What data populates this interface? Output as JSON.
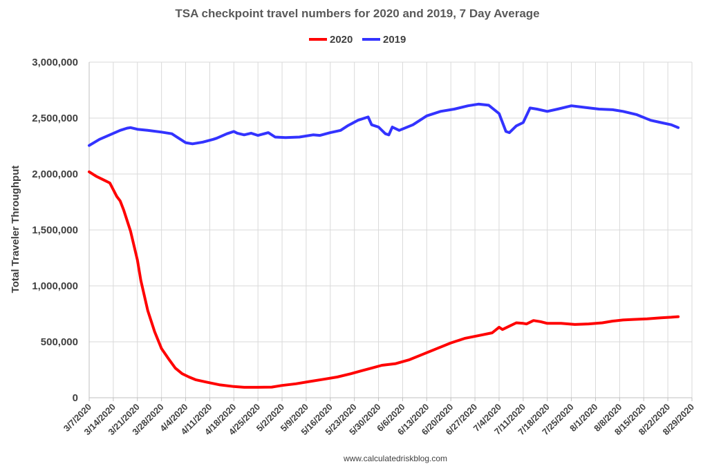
{
  "chart_data": {
    "type": "line",
    "title": "TSA checkpoint travel numbers for 2020 and 2019, 7 Day Average",
    "xlabel": "",
    "ylabel": "Total Traveler Throughput",
    "source": "www.calculatedriskblog.com",
    "ylim": [
      0,
      3000000
    ],
    "yticks": [
      0,
      500000,
      1000000,
      1500000,
      2000000,
      2500000,
      3000000
    ],
    "ytick_labels": [
      "0",
      "500,000",
      "1,000,000",
      "1,500,000",
      "2,000,000",
      "2,500,000",
      "3,000,000"
    ],
    "x_start": "3/7/2020",
    "x_end": "8/29/2020",
    "x_tick_labels": [
      "3/7/2020",
      "3/14/2020",
      "3/21/2020",
      "3/28/2020",
      "4/4/2020",
      "4/11/2020",
      "4/18/2020",
      "4/25/2020",
      "5/2/2020",
      "5/9/2020",
      "5/16/2020",
      "5/23/2020",
      "5/30/2020",
      "6/6/2020",
      "6/13/2020",
      "6/20/2020",
      "6/27/2020",
      "7/4/2020",
      "7/11/2020",
      "7/18/2020",
      "7/25/2020",
      "8/1/2020",
      "8/8/2020",
      "8/15/2020",
      "8/22/2020",
      "8/29/2020"
    ],
    "grid": true,
    "legend_position": "top",
    "series": [
      {
        "name": "2020",
        "color": "#ff0000",
        "points": [
          [
            "3/7/2020",
            2020000
          ],
          [
            "3/9/2020",
            1980000
          ],
          [
            "3/11/2020",
            1950000
          ],
          [
            "3/13/2020",
            1920000
          ],
          [
            "3/15/2020",
            1800000
          ],
          [
            "3/16/2020",
            1760000
          ],
          [
            "3/17/2020",
            1680000
          ],
          [
            "3/19/2020",
            1490000
          ],
          [
            "3/21/2020",
            1230000
          ],
          [
            "3/22/2020",
            1050000
          ],
          [
            "3/24/2020",
            780000
          ],
          [
            "3/26/2020",
            590000
          ],
          [
            "3/28/2020",
            440000
          ],
          [
            "3/30/2020",
            350000
          ],
          [
            "4/1/2020",
            265000
          ],
          [
            "4/3/2020",
            215000
          ],
          [
            "4/5/2020",
            185000
          ],
          [
            "4/7/2020",
            160000
          ],
          [
            "4/10/2020",
            140000
          ],
          [
            "4/14/2020",
            115000
          ],
          [
            "4/18/2020",
            100000
          ],
          [
            "4/21/2020",
            93000
          ],
          [
            "4/25/2020",
            93000
          ],
          [
            "4/29/2020",
            95000
          ],
          [
            "5/2/2020",
            110000
          ],
          [
            "5/6/2020",
            125000
          ],
          [
            "5/10/2020",
            145000
          ],
          [
            "5/14/2020",
            165000
          ],
          [
            "5/18/2020",
            185000
          ],
          [
            "5/22/2020",
            215000
          ],
          [
            "5/25/2020",
            240000
          ],
          [
            "5/28/2020",
            265000
          ],
          [
            "5/31/2020",
            290000
          ],
          [
            "6/4/2020",
            305000
          ],
          [
            "6/8/2020",
            340000
          ],
          [
            "6/12/2020",
            390000
          ],
          [
            "6/16/2020",
            440000
          ],
          [
            "6/20/2020",
            490000
          ],
          [
            "6/24/2020",
            530000
          ],
          [
            "6/28/2020",
            555000
          ],
          [
            "7/2/2020",
            580000
          ],
          [
            "7/4/2020",
            630000
          ],
          [
            "7/5/2020",
            610000
          ],
          [
            "7/7/2020",
            640000
          ],
          [
            "7/9/2020",
            670000
          ],
          [
            "7/11/2020",
            665000
          ],
          [
            "7/12/2020",
            660000
          ],
          [
            "7/14/2020",
            690000
          ],
          [
            "7/16/2020",
            680000
          ],
          [
            "7/18/2020",
            665000
          ],
          [
            "7/22/2020",
            665000
          ],
          [
            "7/26/2020",
            655000
          ],
          [
            "7/30/2020",
            660000
          ],
          [
            "8/3/2020",
            670000
          ],
          [
            "8/6/2020",
            685000
          ],
          [
            "8/9/2020",
            695000
          ],
          [
            "8/12/2020",
            700000
          ],
          [
            "8/16/2020",
            705000
          ],
          [
            "8/20/2020",
            715000
          ],
          [
            "8/23/2020",
            720000
          ],
          [
            "8/25/2020",
            725000
          ]
        ]
      },
      {
        "name": "2019",
        "color": "#3333ff",
        "points": [
          [
            "3/7/2020",
            2255000
          ],
          [
            "3/10/2020",
            2310000
          ],
          [
            "3/13/2020",
            2350000
          ],
          [
            "3/16/2020",
            2390000
          ],
          [
            "3/18/2020",
            2410000
          ],
          [
            "3/19/2020",
            2415000
          ],
          [
            "3/21/2020",
            2400000
          ],
          [
            "3/24/2020",
            2390000
          ],
          [
            "3/28/2020",
            2375000
          ],
          [
            "3/31/2020",
            2360000
          ],
          [
            "4/2/2020",
            2320000
          ],
          [
            "4/4/2020",
            2280000
          ],
          [
            "4/6/2020",
            2270000
          ],
          [
            "4/9/2020",
            2285000
          ],
          [
            "4/12/2020",
            2310000
          ],
          [
            "4/13/2020",
            2320000
          ],
          [
            "4/16/2020",
            2360000
          ],
          [
            "4/18/2020",
            2380000
          ],
          [
            "4/19/2020",
            2365000
          ],
          [
            "4/21/2020",
            2350000
          ],
          [
            "4/23/2020",
            2365000
          ],
          [
            "4/25/2020",
            2345000
          ],
          [
            "4/28/2020",
            2370000
          ],
          [
            "4/30/2020",
            2330000
          ],
          [
            "5/3/2020",
            2325000
          ],
          [
            "5/7/2020",
            2330000
          ],
          [
            "5/11/2020",
            2350000
          ],
          [
            "5/13/2020",
            2345000
          ],
          [
            "5/16/2020",
            2370000
          ],
          [
            "5/19/2020",
            2390000
          ],
          [
            "5/21/2020",
            2430000
          ],
          [
            "5/24/2020",
            2480000
          ],
          [
            "5/27/2020",
            2510000
          ],
          [
            "5/28/2020",
            2440000
          ],
          [
            "5/30/2020",
            2420000
          ],
          [
            "6/1/2020",
            2360000
          ],
          [
            "6/2/2020",
            2350000
          ],
          [
            "6/3/2020",
            2420000
          ],
          [
            "6/5/2020",
            2390000
          ],
          [
            "6/9/2020",
            2440000
          ],
          [
            "6/13/2020",
            2520000
          ],
          [
            "6/17/2020",
            2560000
          ],
          [
            "6/21/2020",
            2580000
          ],
          [
            "6/25/2020",
            2610000
          ],
          [
            "6/28/2020",
            2625000
          ],
          [
            "7/1/2020",
            2615000
          ],
          [
            "7/4/2020",
            2540000
          ],
          [
            "7/6/2020",
            2380000
          ],
          [
            "7/7/2020",
            2370000
          ],
          [
            "7/9/2020",
            2430000
          ],
          [
            "7/11/2020",
            2460000
          ],
          [
            "7/13/2020",
            2590000
          ],
          [
            "7/15/2020",
            2580000
          ],
          [
            "7/18/2020",
            2560000
          ],
          [
            "7/21/2020",
            2580000
          ],
          [
            "7/25/2020",
            2610000
          ],
          [
            "7/29/2020",
            2595000
          ],
          [
            "8/2/2020",
            2580000
          ],
          [
            "8/6/2020",
            2575000
          ],
          [
            "8/9/2020",
            2560000
          ],
          [
            "8/13/2020",
            2530000
          ],
          [
            "8/17/2020",
            2480000
          ],
          [
            "8/20/2020",
            2460000
          ],
          [
            "8/23/2020",
            2440000
          ],
          [
            "8/25/2020",
            2415000
          ]
        ]
      }
    ]
  }
}
